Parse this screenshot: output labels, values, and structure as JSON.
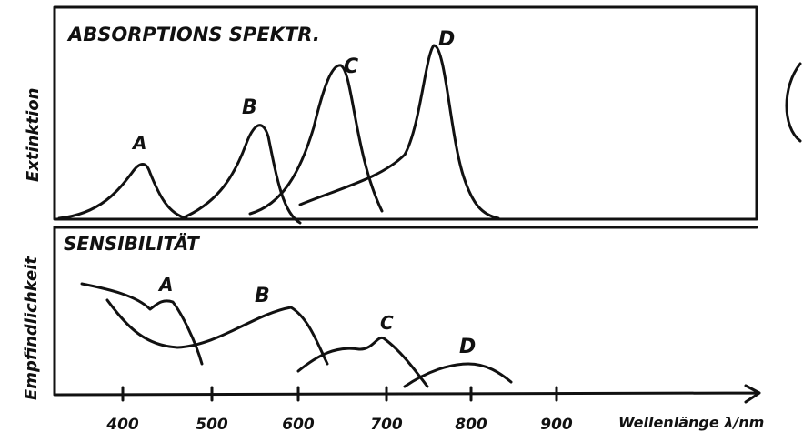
{
  "top_panel": {
    "title": "ABSORPTIONS SPEKTR.",
    "y_label": "Extinktion",
    "peak_labels": [
      "A",
      "B",
      "C",
      "D"
    ]
  },
  "bottom_panel": {
    "title": "SENSIBILITÄT",
    "y_label": "Empfindlichkeit",
    "curve_labels": [
      "A",
      "B",
      "C",
      "D"
    ]
  },
  "x_axis": {
    "ticks": [
      "400",
      "500",
      "600",
      "700",
      "800",
      "900"
    ],
    "label": "Wellenlänge λ/nm"
  }
}
